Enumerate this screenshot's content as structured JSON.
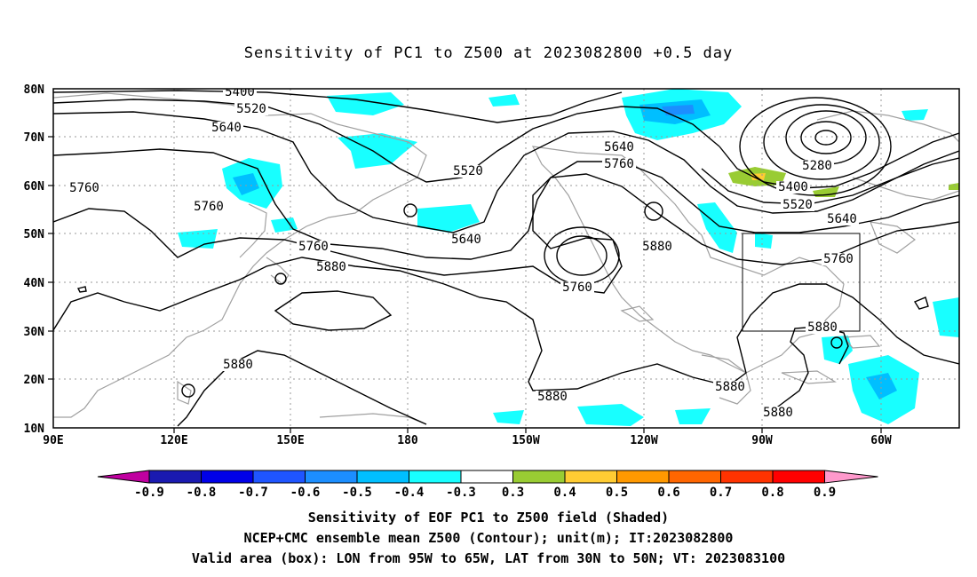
{
  "title": "Sensitivity of PC1 to Z500 at 2023082800 +0.5 day",
  "lat_labels": [
    "80N",
    "70N",
    "60N",
    "50N",
    "40N",
    "30N",
    "20N",
    "10N"
  ],
  "lon_labels": [
    "90E",
    "120E",
    "150E",
    "180",
    "150W",
    "120W",
    "90W",
    "60W"
  ],
  "contour_labels": [
    {
      "text": "5400"
    },
    {
      "text": "5520"
    },
    {
      "text": "5640"
    },
    {
      "text": "5760"
    },
    {
      "text": "5760"
    },
    {
      "text": "5520"
    },
    {
      "text": "5640"
    },
    {
      "text": "5760"
    },
    {
      "text": "5880"
    },
    {
      "text": "5640"
    },
    {
      "text": "5760"
    },
    {
      "text": "5640"
    },
    {
      "text": "5880"
    },
    {
      "text": "5760"
    },
    {
      "text": "5280"
    },
    {
      "text": "5400"
    },
    {
      "text": "5520"
    },
    {
      "text": "5640"
    },
    {
      "text": "5760"
    },
    {
      "text": "5880"
    },
    {
      "text": "5880"
    },
    {
      "text": "5880"
    },
    {
      "text": "5880"
    },
    {
      "text": "5880"
    }
  ],
  "colorbar": {
    "labels": [
      "-0.9",
      "-0.8",
      "-0.7",
      "-0.6",
      "-0.5",
      "-0.4",
      "-0.3",
      "0.3",
      "0.4",
      "0.5",
      "0.6",
      "0.7",
      "0.8",
      "0.9"
    ],
    "colors": [
      "#1a1ab0",
      "#0000e8",
      "#1f55ff",
      "#1c8eff",
      "#00bfff",
      "#18ffff",
      "#ffffff",
      "#99cc33",
      "#ffcc33",
      "#ff9900",
      "#ff6600",
      "#ff3300",
      "#ff0000"
    ],
    "left_arrow_color": "#c000a0",
    "right_arrow_color": "#ff99cc"
  },
  "footer": {
    "line1": "Sensitivity of EOF PC1 to Z500 field (Shaded)",
    "line2": "NCEP+CMC ensemble mean Z500 (Contour); unit(m); IT:2023082800",
    "line3": "Valid area (box): LON from 95W to 65W, LAT from 30N to 50N; VT: 2023083100"
  },
  "colors": {
    "contour": "#000000",
    "coast": "#a0a0a0",
    "grid": "#999999",
    "shade_blue": "#18ffff",
    "shade_green": "#99cc33"
  }
}
